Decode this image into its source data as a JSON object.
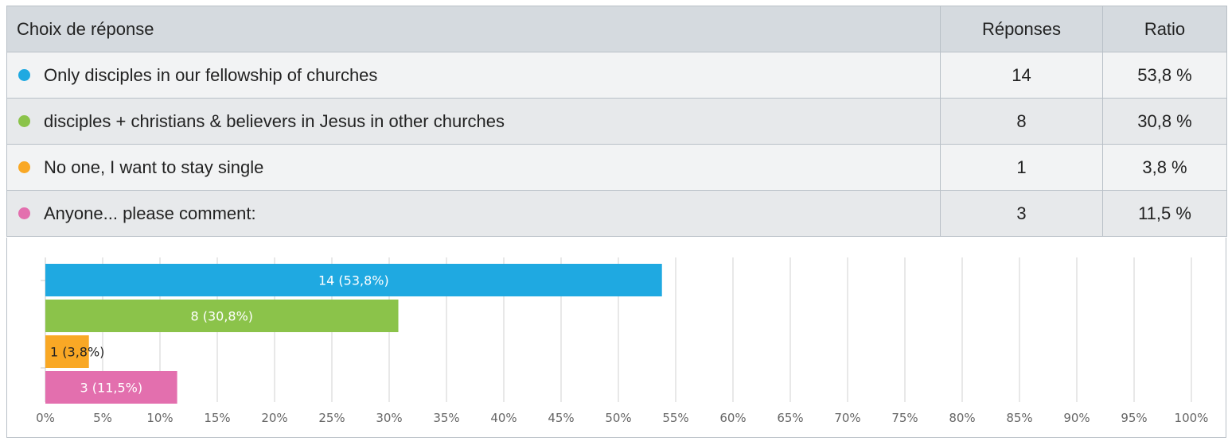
{
  "table": {
    "headers": {
      "choice": "Choix de réponse",
      "responses": "Réponses",
      "ratio": "Ratio"
    },
    "rows": [
      {
        "color": "#1fa9e1",
        "choice": "Only disciples in our fellowship of churches",
        "responses": "14",
        "ratio": "53,8 %"
      },
      {
        "color": "#8bc34a",
        "choice": "disciples + christians & believers in Jesus in other churches",
        "responses": "8",
        "ratio": "30,8 %"
      },
      {
        "color": "#f9a825",
        "choice": "No one, I want to stay single",
        "responses": "1",
        "ratio": "3,8 %"
      },
      {
        "color": "#e36fae",
        "choice": "Anyone... please comment:",
        "responses": "3",
        "ratio": "11,5 %"
      }
    ]
  },
  "chart_data": {
    "type": "bar",
    "orientation": "horizontal",
    "categories": [
      "Only disciples in our fellowship of churches",
      "disciples + christians & believers in Jesus in other churches",
      "No one, I want to stay single",
      "Anyone... please comment:"
    ],
    "values": [
      53.8,
      30.8,
      3.8,
      11.5
    ],
    "counts": [
      14,
      8,
      1,
      3
    ],
    "bar_labels": [
      "14 (53,8%)",
      "8 (30,8%)",
      "1 (3,8%)",
      "3 (11,5%)"
    ],
    "colors": [
      "#1fa9e1",
      "#8bc34a",
      "#f9a825",
      "#e36fae"
    ],
    "label_colors": [
      "#ffffff",
      "#ffffff",
      "#222222",
      "#ffffff"
    ],
    "xlim": [
      0,
      100
    ],
    "x_ticks": [
      0,
      5,
      10,
      15,
      20,
      25,
      30,
      35,
      40,
      45,
      50,
      55,
      60,
      65,
      70,
      75,
      80,
      85,
      90,
      95,
      100
    ],
    "x_tick_labels": [
      "0%",
      "5%",
      "10%",
      "15%",
      "20%",
      "25%",
      "30%",
      "35%",
      "40%",
      "45%",
      "50%",
      "55%",
      "60%",
      "65%",
      "70%",
      "75%",
      "80%",
      "85%",
      "90%",
      "95%",
      "100%"
    ],
    "grid": true,
    "gridline_color": "#d0d0d0"
  }
}
